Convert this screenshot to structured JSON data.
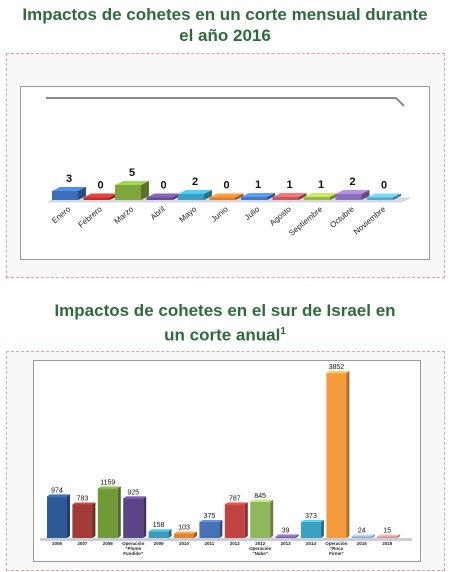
{
  "titles": {
    "monthly_line1": "Impactos de cohetes en un corte mensual durante",
    "monthly_line2": "el año 2016",
    "annual_line1": "Impactos de cohetes en el sur de Israel en",
    "annual_line2": "un corte anual",
    "annual_footnote": "1"
  },
  "chart_data": [
    {
      "type": "bar",
      "categories": [
        "Enero",
        "Febrero",
        "Marzo",
        "Abril",
        "Mayo",
        "Junio",
        "Julio",
        "Agosto",
        "Septiembre",
        "Octubre",
        "Noviembre"
      ],
      "values": [
        3,
        0,
        5,
        0,
        2,
        0,
        1,
        1,
        1,
        2,
        0
      ],
      "ylim": [
        0,
        25
      ],
      "colors": [
        "#3b6fb6",
        "#b5322f",
        "#7fa63c",
        "#6a4c93",
        "#3aa0c0",
        "#e07a2c",
        "#4a78c0",
        "#c05a5a",
        "#9ab54a",
        "#8d6fb5",
        "#5aa6c8"
      ]
    },
    {
      "type": "bar",
      "categories": [
        [
          "2006"
        ],
        [
          "2007"
        ],
        [
          "2008"
        ],
        [
          "Operación",
          "“Plomo",
          "Fundido”"
        ],
        [
          "2009"
        ],
        [
          "2010"
        ],
        [
          "2011"
        ],
        [
          "2012"
        ],
        [
          "2012",
          "Operación",
          "“Nube”"
        ],
        [
          "2013"
        ],
        [
          "2014"
        ],
        [
          "Operación",
          "“Roca",
          "Firme”"
        ],
        [
          "2015"
        ],
        [
          "2016"
        ]
      ],
      "values": [
        974,
        783,
        1159,
        925,
        158,
        103,
        375,
        787,
        845,
        39,
        373,
        3852,
        24,
        15
      ],
      "ylim": [
        0,
        4000
      ],
      "colors": [
        "#2e5a9a",
        "#a23a36",
        "#6f9a3a",
        "#5c4487",
        "#3a9bbd",
        "#e0822f",
        "#4673b8",
        "#c0433f",
        "#8fb85a",
        "#7a5fa8",
        "#3aa3c4",
        "#f59a3a",
        "#8fa8d8",
        "#d89090"
      ]
    }
  ]
}
